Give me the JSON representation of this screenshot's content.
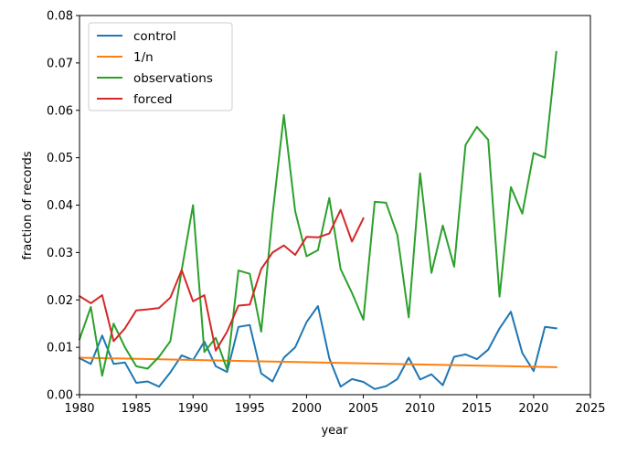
{
  "chart_data": {
    "type": "line",
    "title": "",
    "xlabel": "year",
    "ylabel": "fraction of records",
    "xlim": [
      1980,
      2025
    ],
    "ylim": [
      0.0,
      0.08
    ],
    "xticks": [
      1980,
      1985,
      1990,
      1995,
      2000,
      2005,
      2010,
      2015,
      2020,
      2025
    ],
    "xtick_labels": [
      "1980",
      "1985",
      "1990",
      "1995",
      "2000",
      "2005",
      "2010",
      "2015",
      "2020",
      "2025"
    ],
    "yticks": [
      0.0,
      0.01,
      0.02,
      0.03,
      0.04,
      0.05,
      0.06,
      0.07,
      0.08
    ],
    "ytick_labels": [
      "0.00",
      "0.01",
      "0.02",
      "0.03",
      "0.04",
      "0.05",
      "0.06",
      "0.07",
      "0.08"
    ],
    "grid": false,
    "legend_position": "top-left",
    "series": [
      {
        "name": "control",
        "color": "#1f77b4",
        "x": [
          1980,
          1981,
          1982,
          1983,
          1984,
          1985,
          1986,
          1987,
          1988,
          1989,
          1990,
          1991,
          1992,
          1993,
          1994,
          1995,
          1996,
          1997,
          1998,
          1999,
          2000,
          2001,
          2002,
          2003,
          2004,
          2005,
          2006,
          2007,
          2008,
          2009,
          2010,
          2011,
          2012,
          2013,
          2014,
          2015,
          2016,
          2017,
          2018,
          2019,
          2020,
          2021,
          2022
        ],
        "y": [
          0.0077,
          0.0065,
          0.0125,
          0.0065,
          0.0068,
          0.0025,
          0.0028,
          0.0017,
          0.0047,
          0.0083,
          0.0073,
          0.0112,
          0.006,
          0.0048,
          0.0143,
          0.0147,
          0.0045,
          0.0028,
          0.0078,
          0.01,
          0.0153,
          0.0187,
          0.0077,
          0.0017,
          0.0033,
          0.0027,
          0.0012,
          0.0018,
          0.0033,
          0.0078,
          0.0032,
          0.0043,
          0.002,
          0.008,
          0.0085,
          0.0075,
          0.0095,
          0.014,
          0.0175,
          0.0088,
          0.005,
          0.0143,
          0.014
        ]
      },
      {
        "name": "1/n",
        "color": "#ff7f0e",
        "x": [
          1980,
          2022
        ],
        "y": [
          0.0078,
          0.0058
        ]
      },
      {
        "name": "observations",
        "color": "#2ca02c",
        "x": [
          1980,
          1981,
          1982,
          1983,
          1984,
          1985,
          1986,
          1987,
          1988,
          1989,
          1990,
          1991,
          1992,
          1993,
          1994,
          1995,
          1996,
          1997,
          1998,
          1999,
          2000,
          2001,
          2002,
          2003,
          2004,
          2005,
          2006,
          2007,
          2008,
          2009,
          2010,
          2011,
          2012,
          2013,
          2014,
          2015,
          2016,
          2017,
          2018,
          2019,
          2020,
          2021,
          2022
        ],
        "y": [
          0.0117,
          0.0185,
          0.004,
          0.015,
          0.01,
          0.006,
          0.0055,
          0.008,
          0.0113,
          0.0263,
          0.04,
          0.009,
          0.012,
          0.0053,
          0.0262,
          0.0255,
          0.0133,
          0.038,
          0.059,
          0.0387,
          0.0292,
          0.0305,
          0.0415,
          0.0265,
          0.0215,
          0.0158,
          0.0407,
          0.0405,
          0.0337,
          0.0163,
          0.0467,
          0.0257,
          0.0357,
          0.027,
          0.0527,
          0.0565,
          0.0538,
          0.0207,
          0.0438,
          0.0382,
          0.051,
          0.05,
          0.0723
        ]
      },
      {
        "name": "forced",
        "color": "#d62728",
        "x": [
          1980,
          1981,
          1982,
          1983,
          1984,
          1985,
          1986,
          1987,
          1988,
          1989,
          1990,
          1991,
          1992,
          1993,
          1994,
          1995,
          1996,
          1997,
          1998,
          1999,
          2000,
          2001,
          2002,
          2003,
          2004,
          2005
        ],
        "y": [
          0.0208,
          0.0193,
          0.021,
          0.0113,
          0.014,
          0.0178,
          0.018,
          0.0183,
          0.0205,
          0.0263,
          0.0197,
          0.021,
          0.0093,
          0.0133,
          0.0188,
          0.019,
          0.0265,
          0.03,
          0.0315,
          0.0295,
          0.0333,
          0.0332,
          0.034,
          0.039,
          0.0323,
          0.0372
        ]
      }
    ]
  }
}
